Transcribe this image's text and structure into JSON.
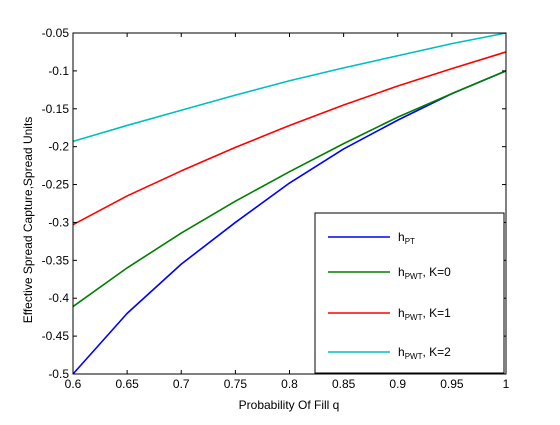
{
  "chart_data": {
    "type": "line",
    "xlabel": "Probability Of Fill q",
    "ylabel": "Effective Spread Capture,Spread Units",
    "xlim": [
      0.6,
      1.0
    ],
    "ylim": [
      -0.5,
      -0.05
    ],
    "xticks": [
      "0.6",
      "0.65",
      "0.7",
      "0.75",
      "0.8",
      "0.85",
      "0.9",
      "0.95",
      "1"
    ],
    "yticks": [
      "-0.5",
      "-0.45",
      "-0.4",
      "-0.35",
      "-0.3",
      "-0.25",
      "-0.2",
      "-0.15",
      "-0.1",
      "-0.05"
    ],
    "x": [
      0.6,
      0.65,
      0.7,
      0.75,
      0.8,
      0.85,
      0.9,
      0.95,
      1.0
    ],
    "grid": false,
    "legend_position": "lower-right",
    "series": [
      {
        "name": "h_PT",
        "label_main": "h",
        "label_sub": "PT",
        "label_suffix": "",
        "color": "#0000ff",
        "values": [
          -0.5,
          -0.42,
          -0.355,
          -0.3,
          -0.248,
          -0.203,
          -0.165,
          -0.13,
          -0.1
        ]
      },
      {
        "name": "h_PWT, K=0",
        "label_main": "h",
        "label_sub": "PWT",
        "label_suffix": ", K=0",
        "color": "#007f00",
        "values": [
          -0.411,
          -0.36,
          -0.314,
          -0.272,
          -0.233,
          -0.196,
          -0.161,
          -0.13,
          -0.1
        ]
      },
      {
        "name": "h_PWT, K=1",
        "label_main": "h",
        "label_sub": "PWT",
        "label_suffix": ", K=1",
        "color": "#ff0000",
        "values": [
          -0.303,
          -0.265,
          -0.232,
          -0.201,
          -0.172,
          -0.145,
          -0.12,
          -0.097,
          -0.075
        ]
      },
      {
        "name": "h_PWT, K=2",
        "label_main": "h",
        "label_sub": "PWT",
        "label_suffix": ", K=2",
        "color": "#00bfbf",
        "values": [
          -0.193,
          -0.172,
          -0.152,
          -0.132,
          -0.113,
          -0.096,
          -0.08,
          -0.064,
          -0.05
        ]
      }
    ]
  }
}
